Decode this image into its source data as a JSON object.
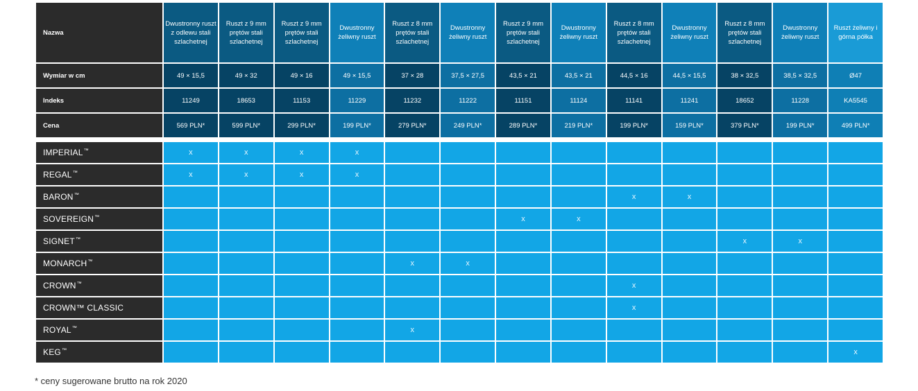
{
  "header_label": "Nazwa",
  "products": [
    {
      "name": "Dwustronny ruszt z odlewu stali szlachetnej",
      "dim": "49 × 15,5",
      "index": "11249",
      "price": "569 PLN*"
    },
    {
      "name": "Ruszt z 9 mm prętów stali szlachetnej",
      "dim": "49 × 32",
      "index": "18653",
      "price": "599 PLN*"
    },
    {
      "name": "Ruszt z 9 mm prętów stali szlachetnej",
      "dim": "49 × 16",
      "index": "11153",
      "price": "299 PLN*"
    },
    {
      "name": "Dwustronny żeliwny ruszt",
      "dim": "49 × 15,5",
      "index": "11229",
      "price": "199 PLN*"
    },
    {
      "name": "Ruszt z 8 mm prętów stali szlachetnej",
      "dim": "37 × 28",
      "index": "11232",
      "price": "279 PLN*"
    },
    {
      "name": "Dwustronny żeliwny ruszt",
      "dim": "37,5 × 27,5",
      "index": "11222",
      "price": "249 PLN*"
    },
    {
      "name": "Ruszt z 9 mm prętów stali szlachetnej",
      "dim": "43,5 × 21",
      "index": "11151",
      "price": "289 PLN*"
    },
    {
      "name": "Dwustronny żeliwny ruszt",
      "dim": "43,5 × 21",
      "index": "11124",
      "price": "219 PLN*"
    },
    {
      "name": "Ruszt z 8 mm prętów stali szlachetnej",
      "dim": "44,5 × 16",
      "index": "11141",
      "price": "199 PLN*"
    },
    {
      "name": "Dwustronny żeliwny ruszt",
      "dim": "44,5 × 15,5",
      "index": "11241",
      "price": "159 PLN*"
    },
    {
      "name": "Ruszt z 8 mm prętów stali szlachetnej",
      "dim": "38 × 32,5",
      "index": "18652",
      "price": "379 PLN*"
    },
    {
      "name": "Dwustronny żeliwny ruszt",
      "dim": "38,5 × 32,5",
      "index": "11228",
      "price": "199 PLN*"
    },
    {
      "name": "Ruszt żeliwny i górna półka",
      "dim": "Ø47",
      "index": "KA5545",
      "price": "499 PLN*"
    }
  ],
  "spec_rows": [
    {
      "label": "Wymiar w cm",
      "key": "dim"
    },
    {
      "label": "Indeks",
      "key": "index"
    },
    {
      "label": "Cena",
      "key": "price"
    }
  ],
  "mark": "x",
  "models": [
    {
      "name": "IMPERIAL",
      "tm": "™",
      "marks": [
        0,
        1,
        2,
        3
      ]
    },
    {
      "name": "REGAL",
      "tm": "™",
      "marks": [
        0,
        1,
        2,
        3
      ]
    },
    {
      "name": "BARON",
      "tm": "™",
      "marks": [
        8,
        9
      ]
    },
    {
      "name": "SOVEREIGN",
      "tm": "™",
      "marks": [
        6,
        7
      ]
    },
    {
      "name": "SIGNET",
      "tm": "™",
      "marks": [
        10,
        11
      ]
    },
    {
      "name": "MONARCH",
      "tm": "™",
      "marks": [
        4,
        5
      ]
    },
    {
      "name": "CROWN",
      "tm": "™",
      "marks": [
        8
      ]
    },
    {
      "name": "CROWN™ CLASSIC",
      "tm": "",
      "marks": [
        8
      ]
    },
    {
      "name": "ROYAL",
      "tm": "™",
      "marks": [
        4
      ]
    },
    {
      "name": "KEG",
      "tm": "™",
      "marks": [
        12
      ]
    }
  ],
  "footnote": "* ceny sugerowane brutto na rok 2020"
}
